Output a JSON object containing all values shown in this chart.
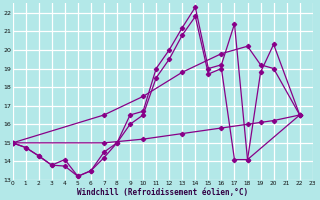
{
  "bg_color": "#b3e8e8",
  "grid_color": "#ffffff",
  "line_color": "#880088",
  "xlim": [
    0,
    23
  ],
  "ylim": [
    13,
    22.5
  ],
  "xtick_vals": [
    0,
    1,
    2,
    3,
    4,
    5,
    6,
    7,
    8,
    9,
    10,
    11,
    12,
    13,
    14,
    15,
    16,
    17,
    18,
    19,
    20,
    21,
    22,
    23
  ],
  "ytick_vals": [
    13,
    14,
    15,
    16,
    17,
    18,
    19,
    20,
    21,
    22
  ],
  "xlabel": "Windchill (Refroidissement éolien,°C)",
  "s1_x": [
    0,
    1,
    2,
    3,
    4,
    5,
    6,
    7,
    8,
    9,
    10,
    11,
    12,
    13,
    14,
    15,
    16,
    17,
    18,
    22
  ],
  "s1_y": [
    15.0,
    14.75,
    14.3,
    13.8,
    13.75,
    13.2,
    13.5,
    14.5,
    15.0,
    16.5,
    16.7,
    19.0,
    20.0,
    21.2,
    22.3,
    19.0,
    19.2,
    21.4,
    14.1,
    16.5
  ],
  "s2_x": [
    0,
    1,
    2,
    3,
    4,
    5,
    6,
    7,
    8,
    9,
    10,
    11,
    12,
    13,
    14,
    15,
    16,
    17,
    18,
    19,
    20,
    22
  ],
  "s2_y": [
    15.0,
    14.75,
    14.3,
    13.8,
    14.1,
    13.2,
    13.5,
    14.2,
    15.0,
    16.0,
    16.5,
    18.5,
    19.5,
    20.8,
    21.8,
    18.7,
    19.0,
    14.1,
    14.1,
    18.8,
    20.3,
    16.5
  ],
  "s3_x": [
    0,
    7,
    10,
    13,
    16,
    18,
    19,
    20,
    22
  ],
  "s3_y": [
    15.0,
    16.5,
    17.5,
    18.8,
    19.8,
    20.2,
    19.2,
    19.0,
    16.5
  ],
  "s4_x": [
    0,
    7,
    10,
    13,
    16,
    18,
    19,
    20,
    22
  ],
  "s4_y": [
    15.0,
    15.0,
    15.2,
    15.5,
    15.8,
    16.0,
    16.1,
    16.2,
    16.5
  ]
}
